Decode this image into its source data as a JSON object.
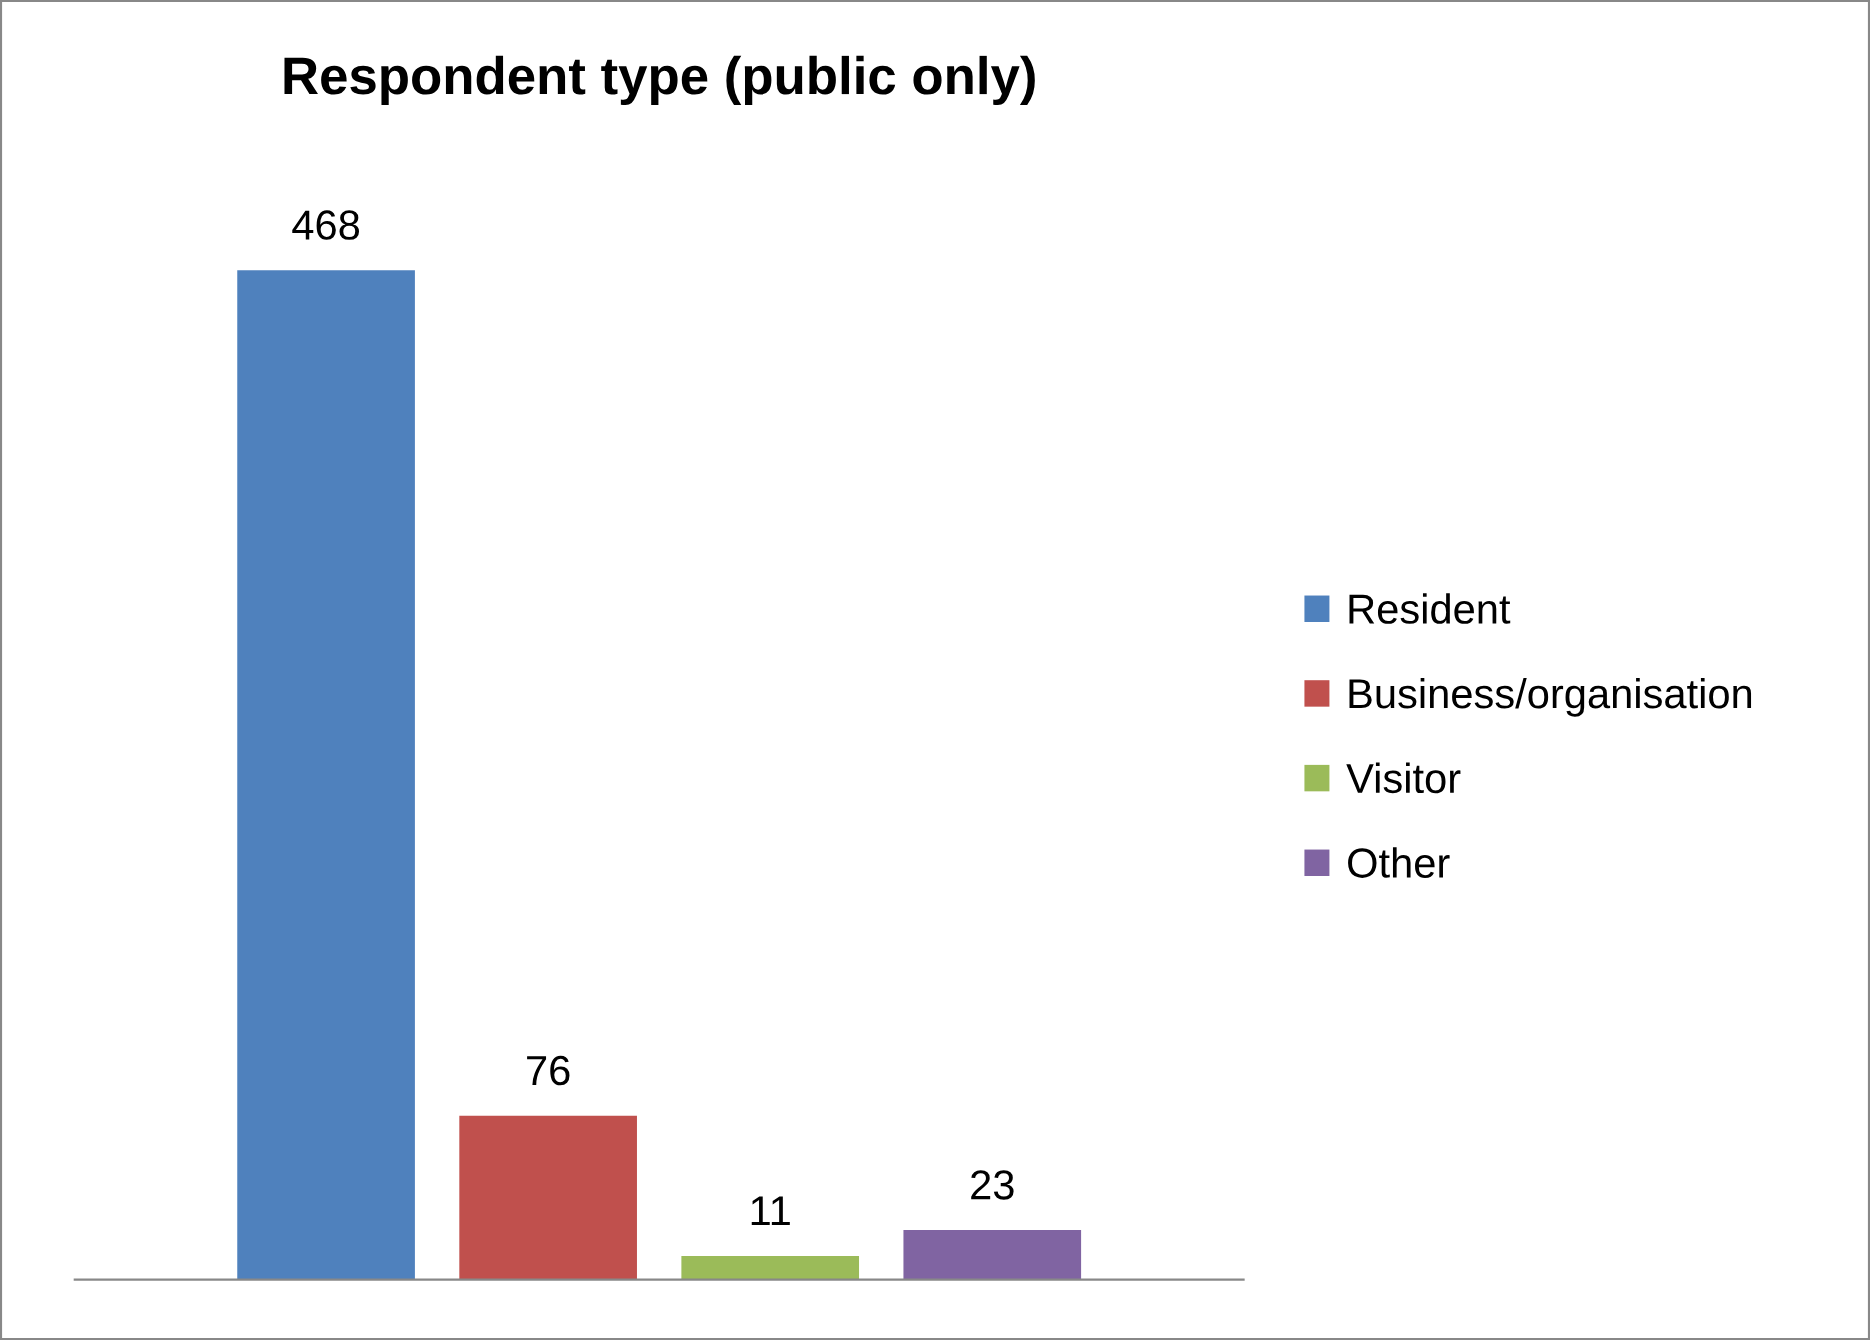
{
  "chart_data": {
    "type": "bar",
    "title": "Respondent type (public only)",
    "categories": [
      null
    ],
    "series": [
      {
        "name": "Resident",
        "color": "#4f81bd",
        "values": [
          468
        ]
      },
      {
        "name": "Business/organisation",
        "color": "#c0504d",
        "values": [
          76
        ]
      },
      {
        "name": "Visitor",
        "color": "#9bbb59",
        "values": [
          11
        ]
      },
      {
        "name": "Other",
        "color": "#8064a2",
        "values": [
          23
        ]
      }
    ],
    "data_labels": true,
    "legend": "right",
    "tick_labels": false,
    "grid": false
  }
}
